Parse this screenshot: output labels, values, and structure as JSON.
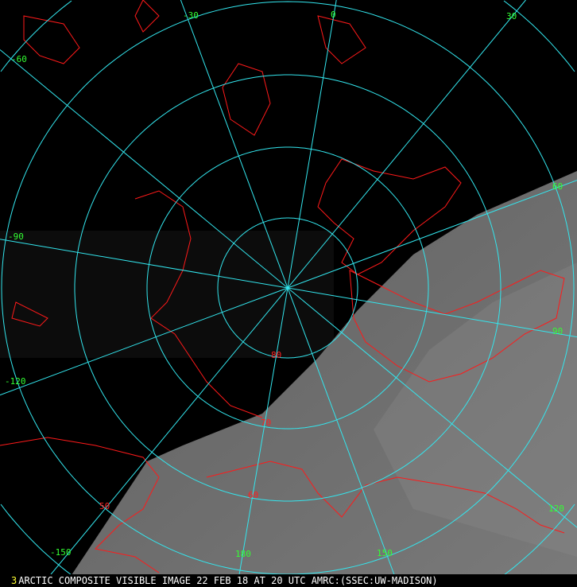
{
  "image": {
    "frame_number": "3",
    "caption": "ARCTIC COMPOSITE VISIBLE IMAGE 22 FEB 18 AT 20 UTC AMRC:(SSEC:UW-MADISON)",
    "colors": {
      "grid": "#33e6ee",
      "coastline": "#ff1a1a",
      "longitude_labels": "#33ff33",
      "latitude_labels": "#ff2020",
      "background": "#000000"
    }
  },
  "grid": {
    "latitude_labels": [
      "80",
      "70",
      "60",
      "50"
    ],
    "longitude_labels": [
      "-30",
      "0",
      "30",
      "-60",
      "60",
      "-90",
      "90",
      "-120",
      "120",
      "-150",
      "180",
      "150"
    ]
  }
}
